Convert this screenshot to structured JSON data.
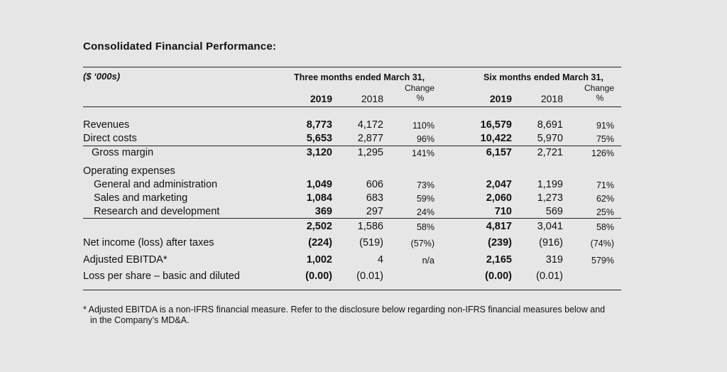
{
  "title": "Consolidated Financial Performance:",
  "header": {
    "units": "($ ‘000s)",
    "three_months": "Three months ended March 31,",
    "six_months": "Six months ended March 31,",
    "change": "Change",
    "pct": "%",
    "y2019": "2019",
    "y2018": "2018"
  },
  "rows": [
    {
      "label": "Revenues",
      "q19": "8,773",
      "q18": "4,172",
      "qc": "110%",
      "s19": "16,579",
      "s18": "8,691",
      "sc": "91%"
    },
    {
      "label": "Direct costs",
      "q19": "5,653",
      "q18": "2,877",
      "qc": "96%",
      "s19": "10,422",
      "s18": "5,970",
      "sc": "75%"
    },
    {
      "label": "Gross margin",
      "q19": "3,120",
      "q18": "1,295",
      "qc": "141%",
      "s19": "6,157",
      "s18": "2,721",
      "sc": "126%"
    },
    {
      "label": "Operating expenses"
    },
    {
      "label": "General and administration",
      "q19": "1,049",
      "q18": "606",
      "qc": "73%",
      "s19": "2,047",
      "s18": "1,199",
      "sc": "71%"
    },
    {
      "label": "Sales and marketing",
      "q19": "1,084",
      "q18": "683",
      "qc": "59%",
      "s19": "2,060",
      "s18": "1,273",
      "sc": "62%"
    },
    {
      "label": "Research and development",
      "q19": "369",
      "q18": "297",
      "qc": "24%",
      "s19": "710",
      "s18": "569",
      "sc": "25%"
    },
    {
      "label": "",
      "q19": "2,502",
      "q18": "1,586",
      "qc": "58%",
      "s19": "4,817",
      "s18": "3,041",
      "sc": "58%"
    },
    {
      "label": "Net income (loss) after taxes",
      "q19": "(224)",
      "q18": "(519)",
      "qc": "(57%)",
      "s19": "(239)",
      "s18": "(916)",
      "sc": "(74%)"
    },
    {
      "label": "Adjusted EBITDA*",
      "q19": "1,002",
      "q18": "4",
      "qc": "n/a",
      "s19": "2,165",
      "s18": "319",
      "sc": "579%"
    },
    {
      "label": "Loss per share – basic and diluted",
      "q19": "(0.00)",
      "q18": "(0.01)",
      "qc": "",
      "s19": "(0.00)",
      "s18": "(0.01)",
      "sc": ""
    }
  ],
  "footnote": {
    "line1": "* Adjusted EBITDA is a non-IFRS financial measure. Refer to the disclosure below regarding non-IFRS financial measures below and",
    "line2": "in the Company’s MD&A."
  }
}
